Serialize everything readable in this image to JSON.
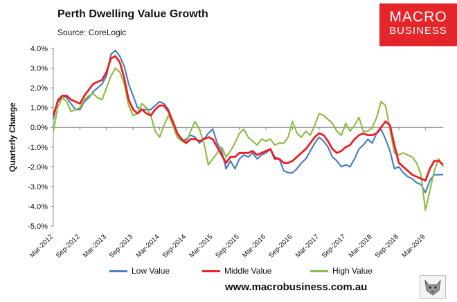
{
  "header": {
    "title": "Perth Dwelling Value Growth",
    "source": "Source: CoreLogic"
  },
  "logo": {
    "line1": "MACRO",
    "line2": "BUSINESS"
  },
  "footer": {
    "url": "www.macrobusiness.com.au"
  },
  "colors": {
    "low": "#4a7ec0",
    "middle": "#ee1d23",
    "high": "#8fbc45",
    "brand": "#e4262b"
  },
  "chart_data": {
    "type": "line",
    "title": "Perth Dwelling Value Growth",
    "xlabel": "",
    "ylabel": "Quarterly Change",
    "ylim": [
      -5.0,
      4.0
    ],
    "y_ticks": [
      "4.0%",
      "3.0%",
      "2.0%",
      "1.0%",
      "0.0%",
      "-1.0%",
      "-2.0%",
      "-3.0%",
      "-4.0%",
      "-5.0%"
    ],
    "x_tick_labels": [
      "Mar-2012",
      "Sep-2012",
      "Mar-2013",
      "Sep-2013",
      "Mar-2014",
      "Sep-2014",
      "Mar-2015",
      "Sep-2015",
      "Mar-2016",
      "Sep-2016",
      "Mar-2017",
      "Sep-2017",
      "Mar-2018",
      "Sep-2018",
      "Mar-2019"
    ],
    "x_start": "Mar-2012",
    "x_end": "Nov-2019",
    "x_unit": "month",
    "series": [
      {
        "name": "Low Value",
        "values": [
          0.4,
          1.4,
          1.6,
          1.5,
          1.2,
          0.9,
          0.9,
          1.3,
          1.5,
          1.8,
          2.0,
          2.2,
          2.6,
          3.7,
          3.9,
          3.6,
          3.1,
          2.2,
          1.6,
          1.0,
          0.9,
          0.9,
          0.9,
          1.1,
          1.3,
          1.2,
          0.9,
          0.3,
          -0.3,
          -0.7,
          -0.6,
          -0.4,
          -0.5,
          -0.8,
          -0.6,
          -0.3,
          -0.1,
          -0.8,
          -1.2,
          -2.1,
          -1.7,
          -2.1,
          -1.6,
          -1.4,
          -1.5,
          -1.3,
          -1.6,
          -1.4,
          -1.3,
          -1.1,
          -1.5,
          -1.6,
          -2.2,
          -2.3,
          -2.3,
          -2.1,
          -1.8,
          -1.6,
          -1.2,
          -0.8,
          -0.5,
          -0.7,
          -1.0,
          -1.5,
          -1.7,
          -2.0,
          -1.9,
          -2.0,
          -1.6,
          -1.1,
          -0.9,
          -0.6,
          -0.8,
          -0.3,
          -0.1,
          -0.6,
          -1.2,
          -2.1,
          -2.0,
          -2.3,
          -2.5,
          -2.6,
          -2.8,
          -2.9,
          -3.3,
          -2.7,
          -2.4,
          -2.4,
          -2.4
        ]
      },
      {
        "name": "Middle Value",
        "values": [
          0.6,
          1.3,
          1.6,
          1.6,
          1.4,
          1.3,
          1.2,
          1.6,
          1.9,
          2.2,
          2.3,
          2.4,
          2.8,
          3.5,
          3.6,
          3.3,
          2.5,
          1.4,
          0.9,
          0.7,
          0.9,
          0.7,
          0.6,
          0.9,
          1.1,
          1.1,
          0.8,
          0.3,
          -0.3,
          -0.6,
          -0.8,
          -0.6,
          -0.6,
          -0.7,
          -0.6,
          -0.5,
          -0.6,
          -1.0,
          -1.4,
          -1.8,
          -1.5,
          -1.5,
          -1.3,
          -1.3,
          -1.3,
          -1.2,
          -1.4,
          -1.3,
          -1.2,
          -1.1,
          -1.6,
          -1.6,
          -1.8,
          -1.8,
          -1.7,
          -1.5,
          -1.3,
          -1.1,
          -0.8,
          -0.5,
          -0.3,
          -0.4,
          -0.7,
          -1.1,
          -1.3,
          -1.2,
          -1.0,
          -0.9,
          -0.6,
          -0.4,
          -0.3,
          -0.4,
          -0.4,
          -0.3,
          0.0,
          0.3,
          0.1,
          -0.9,
          -1.8,
          -2.0,
          -2.2,
          -2.4,
          -2.5,
          -2.6,
          -2.7,
          -2.1,
          -1.7,
          -1.7,
          -1.9
        ]
      },
      {
        "name": "High Value",
        "values": [
          -0.2,
          1.0,
          1.5,
          1.3,
          0.8,
          0.9,
          1.0,
          1.4,
          1.6,
          1.7,
          1.5,
          1.4,
          2.0,
          2.6,
          3.0,
          2.8,
          2.2,
          1.1,
          0.6,
          0.7,
          1.2,
          1.0,
          0.6,
          -0.2,
          -0.5,
          0.1,
          0.6,
          0.1,
          -0.5,
          -0.7,
          -0.8,
          -0.2,
          0.3,
          -0.1,
          -0.8,
          -1.9,
          -1.6,
          -1.3,
          -1.0,
          -1.5,
          -1.2,
          -0.8,
          -0.3,
          -0.1,
          -0.5,
          -0.7,
          -0.9,
          -0.6,
          -0.7,
          -0.6,
          -0.9,
          -0.8,
          -0.8,
          -0.5,
          0.3,
          -0.3,
          -0.5,
          -0.2,
          -0.4,
          0.1,
          0.7,
          0.6,
          0.4,
          0.2,
          -0.2,
          -0.4,
          0.2,
          -0.2,
          0.1,
          0.5,
          -0.2,
          -0.2,
          0.0,
          0.5,
          1.3,
          1.1,
          -0.1,
          -1.3,
          -1.4,
          -1.3,
          -1.4,
          -1.5,
          -1.8,
          -2.4,
          -4.2,
          -3.2,
          -2.2,
          -1.6,
          -2.0
        ]
      }
    ],
    "legend": [
      "Low Value",
      "Middle Value",
      "High Value"
    ],
    "legend_position": "bottom",
    "grid": false
  }
}
